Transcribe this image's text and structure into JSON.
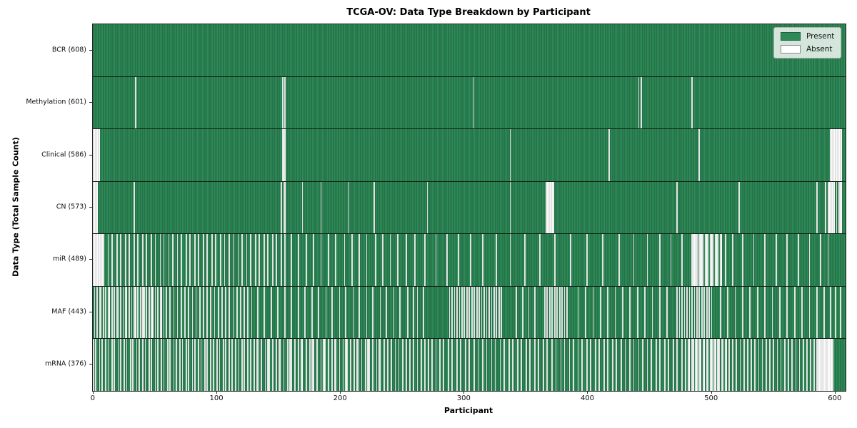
{
  "title": "TCGA-OV: Data Type Breakdown by Participant",
  "chart_data": {
    "type": "heatmap",
    "title": "TCGA-OV: Data Type Breakdown by Participant",
    "xlabel": "Participant",
    "ylabel": "Data Type (Total Sample Count)",
    "x_ticks": [
      0,
      100,
      200,
      300,
      400,
      500,
      600
    ],
    "n_participants": 608,
    "grid": false,
    "legend_position": "upper right",
    "legend": [
      {
        "label": "Present",
        "color": "#2e8b57"
      },
      {
        "label": "Absent",
        "color": "#ffffff"
      }
    ],
    "colors": {
      "present": "#2e8b57",
      "present_edge": "#1f5e3d",
      "absent": "#fbfbfb",
      "absent_edge": "#c9c9c9",
      "row_divider": "#111111",
      "spine": "#262626"
    },
    "rows": [
      {
        "name": "bcr",
        "label": "BCR (608)",
        "present_count": 608,
        "absent_count": 0,
        "absent_indices": []
      },
      {
        "name": "methylation",
        "label": "Methylation (601)",
        "present_count": 601,
        "absent_count": 7,
        "absent_indices": [
          34,
          153,
          155,
          307,
          441,
          443,
          484
        ]
      },
      {
        "name": "clinical",
        "label": "Clinical (586)",
        "present_count": 586,
        "absent_count": 22,
        "absent_indices": [
          0,
          1,
          2,
          3,
          4,
          5,
          153,
          154,
          155,
          337,
          417,
          490,
          596,
          597,
          598,
          599,
          600,
          601,
          602,
          603,
          604,
          605
        ]
      },
      {
        "name": "cn",
        "label": "CN (573)",
        "present_count": 573,
        "absent_count": 35,
        "absent_indices": [
          0,
          1,
          2,
          3,
          33,
          152,
          154,
          155,
          169,
          184,
          206,
          227,
          270,
          337,
          366,
          367,
          368,
          369,
          370,
          371,
          372,
          472,
          522,
          585,
          592,
          594,
          595,
          596,
          597,
          598,
          599,
          601,
          603,
          604,
          605
        ]
      },
      {
        "name": "mir",
        "label": "miR (489)",
        "present_count": 489,
        "absent_count": 119,
        "absent_indices": [
          0,
          1,
          2,
          3,
          4,
          5,
          6,
          7,
          8,
          12,
          15,
          19,
          22,
          26,
          29,
          33,
          36,
          40,
          43,
          47,
          50,
          54,
          57,
          61,
          64,
          68,
          71,
          75,
          78,
          82,
          85,
          89,
          92,
          96,
          99,
          103,
          106,
          110,
          113,
          117,
          120,
          124,
          127,
          131,
          134,
          138,
          141,
          145,
          148,
          152,
          155,
          160,
          166,
          172,
          178,
          184,
          190,
          196,
          203,
          209,
          215,
          221,
          228,
          234,
          240,
          246,
          253,
          260,
          268,
          277,
          286,
          295,
          305,
          315,
          326,
          337,
          349,
          361,
          373,
          386,
          399,
          412,
          425,
          437,
          448,
          458,
          467,
          476,
          484,
          485,
          486,
          487,
          488,
          490,
          491,
          492,
          493,
          495,
          496,
          497,
          499,
          500,
          501,
          503,
          504,
          505,
          507,
          508,
          511,
          517,
          525,
          534,
          543,
          552,
          561,
          570,
          579,
          588,
          594
        ]
      },
      {
        "name": "maf",
        "label": "MAF (443)",
        "present_count": 443,
        "absent_count": 165,
        "absent_indices": [
          1,
          3,
          5,
          6,
          8,
          10,
          12,
          13,
          15,
          17,
          19,
          20,
          22,
          24,
          26,
          27,
          29,
          31,
          33,
          34,
          36,
          38,
          40,
          41,
          43,
          45,
          47,
          48,
          50,
          52,
          54,
          55,
          57,
          59,
          62,
          65,
          68,
          71,
          74,
          77,
          80,
          83,
          86,
          89,
          92,
          95,
          98,
          101,
          104,
          107,
          110,
          113,
          116,
          119,
          122,
          125,
          128,
          133,
          138,
          144,
          149,
          155,
          160,
          166,
          171,
          177,
          182,
          188,
          193,
          199,
          204,
          210,
          215,
          221,
          226,
          232,
          237,
          243,
          248,
          254,
          259,
          262,
          267,
          288,
          290,
          292,
          294,
          296,
          298,
          300,
          302,
          304,
          306,
          308,
          310,
          312,
          314,
          316,
          318,
          320,
          322,
          324,
          326,
          328,
          330,
          342,
          347,
          352,
          357,
          365,
          367,
          369,
          371,
          373,
          375,
          377,
          379,
          381,
          383,
          392,
          398,
          404,
          410,
          416,
          422,
          428,
          434,
          440,
          446,
          452,
          458,
          464,
          472,
          474,
          476,
          478,
          480,
          482,
          484,
          486,
          488,
          490,
          492,
          494,
          496,
          498,
          500,
          507,
          513,
          519,
          525,
          531,
          537,
          543,
          549,
          555,
          561,
          567,
          573,
          579,
          585,
          591,
          596,
          600,
          604
        ]
      },
      {
        "name": "mrna",
        "label": "mRNA (376)",
        "present_count": 376,
        "absent_count": 232,
        "absent_indices": [
          0,
          2,
          5,
          7,
          10,
          12,
          15,
          17,
          20,
          22,
          25,
          27,
          30,
          32,
          35,
          37,
          40,
          42,
          45,
          47,
          50,
          52,
          55,
          57,
          60,
          62,
          65,
          67,
          70,
          72,
          75,
          77,
          80,
          82,
          85,
          87,
          90,
          92,
          95,
          97,
          100,
          102,
          105,
          107,
          110,
          112,
          115,
          117,
          120,
          122,
          125,
          127,
          130,
          132,
          133,
          136,
          139,
          141,
          142,
          145,
          148,
          150,
          151,
          154,
          157,
          159,
          160,
          163,
          166,
          168,
          169,
          172,
          175,
          177,
          178,
          181,
          184,
          186,
          187,
          190,
          193,
          195,
          196,
          199,
          202,
          204,
          205,
          208,
          211,
          213,
          214,
          217,
          220,
          222,
          223,
          226,
          229,
          231,
          232,
          235,
          238,
          241,
          244,
          247,
          250,
          253,
          256,
          259,
          262,
          265,
          268,
          271,
          274,
          277,
          280,
          283,
          287,
          290,
          294,
          297,
          301,
          304,
          308,
          311,
          315,
          318,
          322,
          325,
          329,
          332,
          336,
          339,
          343,
          346,
          350,
          353,
          357,
          360,
          364,
          367,
          371,
          374,
          378,
          381,
          385,
          388,
          392,
          395,
          399,
          402,
          406,
          409,
          413,
          416,
          420,
          423,
          427,
          430,
          434,
          437,
          441,
          444,
          448,
          451,
          455,
          458,
          462,
          465,
          469,
          472,
          476,
          479,
          481,
          482,
          484,
          485,
          487,
          488,
          490,
          491,
          493,
          494,
          496,
          497,
          499,
          500,
          502,
          503,
          505,
          506,
          508,
          509,
          511,
          512,
          514,
          517,
          520,
          523,
          526,
          529,
          532,
          535,
          538,
          541,
          544,
          547,
          550,
          553,
          556,
          559,
          562,
          565,
          568,
          571,
          574,
          577,
          580,
          583,
          585,
          586,
          587,
          588,
          589,
          590,
          591,
          592,
          593,
          594,
          595,
          596,
          597,
          598
        ]
      }
    ]
  }
}
